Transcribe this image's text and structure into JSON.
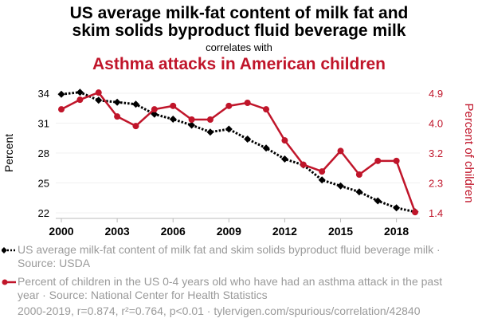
{
  "header": {
    "title_line1": "US average milk-fat content of milk fat and",
    "title_line2": "skim solids byproduct fluid beverage milk",
    "subtitle": "correlates with",
    "title2": "Asthma attacks in American children"
  },
  "legend": {
    "series1": "US average milk-fat content of milk fat and skim solids byproduct fluid beverage milk · Source: USDA",
    "series2": "Percent of children in the US 0-4 years old who have had an asthma attack in the past year · Source: National Center for Health Statistics"
  },
  "footer": "2000-2019, r=0.874, r²=0.764, p<0.01 · tylervigen.com/spurious/correlation/42840",
  "chart_data": {
    "type": "line",
    "x": [
      2000,
      2001,
      2002,
      2003,
      2004,
      2005,
      2006,
      2007,
      2008,
      2009,
      2010,
      2011,
      2012,
      2013,
      2014,
      2015,
      2016,
      2017,
      2018,
      2019
    ],
    "xticks": [
      "2000",
      "2003",
      "2006",
      "2009",
      "2012",
      "2015",
      "2018"
    ],
    "xtick_values": [
      2000,
      2003,
      2006,
      2009,
      2012,
      2015,
      2018
    ],
    "xlim": [
      2000,
      2019
    ],
    "series": [
      {
        "name": "US average milk-fat content of milk fat and skim solids byproduct fluid beverage milk",
        "axis": "left",
        "color": "#000000",
        "style": "dotted",
        "marker": "diamond",
        "values": [
          33.9,
          34.1,
          33.3,
          33.1,
          32.9,
          31.9,
          31.4,
          30.8,
          30.1,
          30.4,
          29.4,
          28.5,
          27.4,
          26.8,
          25.3,
          24.7,
          24.1,
          23.2,
          22.5,
          22.1
        ]
      },
      {
        "name": "Percent of children in the US 0-4 years old who have had an asthma attack in the past year",
        "axis": "right",
        "color": "#c0152a",
        "style": "solid",
        "marker": "circle",
        "values": [
          4.43,
          4.71,
          4.92,
          4.22,
          3.94,
          4.43,
          4.53,
          4.13,
          4.13,
          4.53,
          4.62,
          4.43,
          3.52,
          2.81,
          2.61,
          3.21,
          2.52,
          2.92,
          2.92,
          1.42
        ]
      }
    ],
    "ylabel_left": "Percent",
    "ylabel_right": "Percent of children",
    "yticks_left": [
      "22",
      "25",
      "28",
      "31",
      "34"
    ],
    "ytick_values_left": [
      22,
      25,
      28,
      31,
      34
    ],
    "ylim_left": [
      22,
      34
    ],
    "yticks_right": [
      "1.4",
      "2.3",
      "3.2",
      "4.0",
      "4.9"
    ],
    "ytick_values_right": [
      1.4,
      2.275,
      3.15,
      4.025,
      4.9
    ],
    "ylim_right": [
      1.4,
      4.9
    ],
    "grid": true,
    "right_axis_color": "#c0152a"
  }
}
